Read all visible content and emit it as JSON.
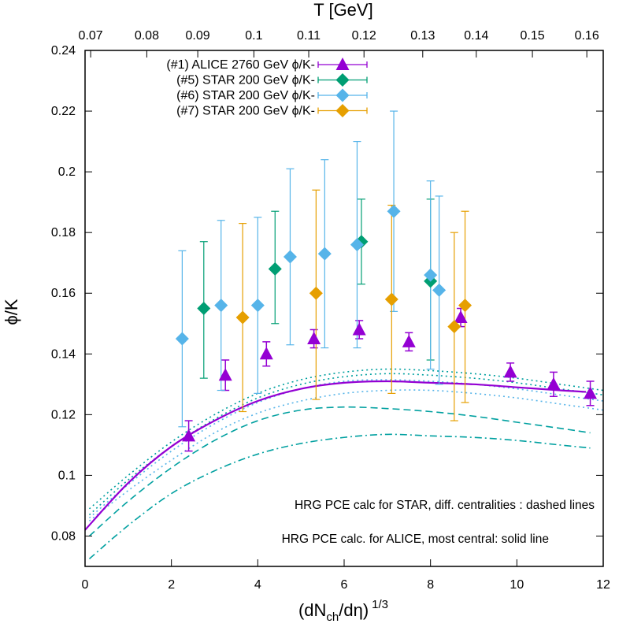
{
  "chart_data": {
    "type": "scatter",
    "title": "",
    "xlabel_main": "(dN",
    "xlabel_sub": "ch",
    "xlabel_tail": "/dη)",
    "xlabel_sup": "1/3",
    "ylabel": "ϕ/K",
    "x2label": "T [GeV]",
    "xlim": [
      0,
      12
    ],
    "ylim": [
      0.07,
      0.24
    ],
    "x_ticks": [
      {
        "value": 0,
        "label": "0"
      },
      {
        "value": 2,
        "label": "2"
      },
      {
        "value": 4,
        "label": "4"
      },
      {
        "value": 6,
        "label": "6"
      },
      {
        "value": 8,
        "label": "8"
      },
      {
        "value": 10,
        "label": "10"
      },
      {
        "value": 12,
        "label": "12"
      }
    ],
    "y_ticks": [
      {
        "value": 0.08,
        "label": "0.08"
      },
      {
        "value": 0.1,
        "label": "0.1"
      },
      {
        "value": 0.12,
        "label": "0.12"
      },
      {
        "value": 0.14,
        "label": "0.14"
      },
      {
        "value": 0.16,
        "label": "0.16"
      },
      {
        "value": 0.18,
        "label": "0.18"
      },
      {
        "value": 0.2,
        "label": "0.2"
      },
      {
        "value": 0.22,
        "label": "0.22"
      },
      {
        "value": 0.24,
        "label": "0.24"
      }
    ],
    "top_ticks": [
      {
        "x": 0.13,
        "label": "0.07"
      },
      {
        "x": 1.43,
        "label": "0.08"
      },
      {
        "x": 2.61,
        "label": "0.09"
      },
      {
        "x": 3.91,
        "label": "0.1"
      },
      {
        "x": 5.18,
        "label": "0.11"
      },
      {
        "x": 6.46,
        "label": "0.12"
      },
      {
        "x": 7.82,
        "label": "0.13"
      },
      {
        "x": 9.06,
        "label": "0.14"
      },
      {
        "x": 10.36,
        "label": "0.15"
      },
      {
        "x": 11.62,
        "label": "0.16"
      }
    ],
    "series": [
      {
        "name": "(#1) ALICE 2760 GeV ϕ/K-",
        "color": "#9400d3",
        "marker": "triangle",
        "points": [
          {
            "x": 2.4,
            "y": 0.113,
            "lo": 0.108,
            "hi": 0.118
          },
          {
            "x": 3.25,
            "y": 0.133,
            "lo": 0.128,
            "hi": 0.138
          },
          {
            "x": 4.2,
            "y": 0.14,
            "lo": 0.136,
            "hi": 0.144
          },
          {
            "x": 5.3,
            "y": 0.145,
            "lo": 0.142,
            "hi": 0.148
          },
          {
            "x": 6.35,
            "y": 0.148,
            "lo": 0.145,
            "hi": 0.151
          },
          {
            "x": 7.5,
            "y": 0.144,
            "lo": 0.141,
            "hi": 0.147
          },
          {
            "x": 8.7,
            "y": 0.152,
            "lo": 0.149,
            "hi": 0.155
          },
          {
            "x": 9.85,
            "y": 0.134,
            "lo": 0.131,
            "hi": 0.137
          },
          {
            "x": 10.85,
            "y": 0.13,
            "lo": 0.126,
            "hi": 0.134
          },
          {
            "x": 11.7,
            "y": 0.127,
            "lo": 0.123,
            "hi": 0.131
          }
        ]
      },
      {
        "name": "(#5) STAR 200 GeV ϕ/K-",
        "color": "#009e73",
        "marker": "diamond",
        "points": [
          {
            "x": 2.75,
            "y": 0.155,
            "lo": 0.132,
            "hi": 0.177
          },
          {
            "x": 4.4,
            "y": 0.168,
            "lo": 0.15,
            "hi": 0.187
          },
          {
            "x": 6.4,
            "y": 0.177,
            "lo": 0.163,
            "hi": 0.191
          },
          {
            "x": 8.0,
            "y": 0.164,
            "lo": 0.138,
            "hi": 0.191
          }
        ]
      },
      {
        "name": "(#6) STAR 200 GeV ϕ/K-",
        "color": "#56b4e9",
        "marker": "diamond",
        "points": [
          {
            "x": 2.25,
            "y": 0.145,
            "lo": 0.116,
            "hi": 0.174
          },
          {
            "x": 3.15,
            "y": 0.156,
            "lo": 0.128,
            "hi": 0.184
          },
          {
            "x": 4.0,
            "y": 0.156,
            "lo": 0.127,
            "hi": 0.185
          },
          {
            "x": 4.75,
            "y": 0.172,
            "lo": 0.143,
            "hi": 0.201
          },
          {
            "x": 5.55,
            "y": 0.173,
            "lo": 0.142,
            "hi": 0.204
          },
          {
            "x": 6.3,
            "y": 0.176,
            "lo": 0.142,
            "hi": 0.21
          },
          {
            "x": 7.15,
            "y": 0.187,
            "lo": 0.154,
            "hi": 0.22
          },
          {
            "x": 8.0,
            "y": 0.166,
            "lo": 0.135,
            "hi": 0.197
          },
          {
            "x": 8.2,
            "y": 0.161,
            "lo": 0.13,
            "hi": 0.192
          }
        ]
      },
      {
        "name": "(#7) STAR 200 GeV ϕ/K-",
        "color": "#e69f00",
        "marker": "diamond",
        "points": [
          {
            "x": 3.65,
            "y": 0.152,
            "lo": 0.121,
            "hi": 0.183
          },
          {
            "x": 5.35,
            "y": 0.16,
            "lo": 0.125,
            "hi": 0.194
          },
          {
            "x": 7.1,
            "y": 0.158,
            "lo": 0.127,
            "hi": 0.189
          },
          {
            "x": 8.55,
            "y": 0.149,
            "lo": 0.118,
            "hi": 0.18
          },
          {
            "x": 8.8,
            "y": 0.156,
            "lo": 0.124,
            "hi": 0.187
          }
        ]
      }
    ],
    "curves": [
      {
        "name": "STAR centrality 1",
        "color": "#00a0a0",
        "dash": "dot",
        "x": [
          0.1,
          1,
          2,
          3,
          4,
          5,
          6,
          7,
          8,
          9,
          10,
          11,
          12
        ],
        "y": [
          0.089,
          0.1,
          0.111,
          0.12,
          0.127,
          0.1315,
          0.134,
          0.135,
          0.1345,
          0.1335,
          0.132,
          0.13,
          0.128
        ]
      },
      {
        "name": "STAR centrality 2",
        "color": "#00a0a0",
        "dash": "dot",
        "x": [
          0.1,
          1,
          2,
          3,
          4,
          5,
          6,
          7,
          8,
          9,
          10,
          11,
          12
        ],
        "y": [
          0.087,
          0.0985,
          0.1095,
          0.1185,
          0.1255,
          0.13,
          0.1325,
          0.1335,
          0.133,
          0.132,
          0.1305,
          0.1285,
          0.1265
        ]
      },
      {
        "name": "STAR centrality 3",
        "color": "#56b4e9",
        "dash": "dot",
        "x": [
          0.1,
          1,
          2,
          3,
          4,
          5,
          6,
          7,
          8,
          9,
          10,
          11,
          12
        ],
        "y": [
          0.086,
          0.097,
          0.108,
          0.117,
          0.124,
          0.1285,
          0.131,
          0.1315,
          0.131,
          0.13,
          0.1285,
          0.1265,
          0.1245
        ]
      },
      {
        "name": "STAR centrality 4",
        "color": "#56b4e9",
        "dash": "dot",
        "x": [
          0.1,
          1,
          2,
          3,
          4,
          5,
          6,
          7,
          8,
          9,
          10,
          11,
          12
        ],
        "y": [
          0.085,
          0.095,
          0.105,
          0.114,
          0.1205,
          0.1245,
          0.127,
          0.128,
          0.128,
          0.127,
          0.1255,
          0.1235,
          0.1215
        ]
      },
      {
        "name": "STAR centrality 5",
        "color": "#00a0a0",
        "dash": "dash",
        "x": [
          0.1,
          1,
          2,
          3,
          4,
          5,
          6,
          7,
          8,
          9,
          10,
          11,
          11.7
        ],
        "y": [
          0.08,
          0.0915,
          0.1025,
          0.1115,
          0.118,
          0.1215,
          0.1225,
          0.122,
          0.121,
          0.1195,
          0.1175,
          0.1155,
          0.114
        ]
      },
      {
        "name": "STAR centrality 6",
        "color": "#00a0a0",
        "dash": "dashdot",
        "x": [
          0.1,
          1,
          2,
          3,
          4,
          5,
          6,
          7,
          8,
          9,
          10,
          11,
          11.7
        ],
        "y": [
          0.0725,
          0.0835,
          0.094,
          0.1015,
          0.107,
          0.1105,
          0.1125,
          0.1135,
          0.113,
          0.1125,
          0.1115,
          0.11,
          0.109
        ]
      },
      {
        "name": "ALICE most central",
        "color": "#9400d3",
        "dash": "solid",
        "x": [
          0,
          1,
          2,
          3,
          4,
          5,
          6,
          7,
          8,
          9,
          10,
          11,
          11.6
        ],
        "y": [
          0.082,
          0.0975,
          0.1095,
          0.118,
          0.1245,
          0.1285,
          0.1305,
          0.131,
          0.1305,
          0.13,
          0.129,
          0.128,
          0.1275
        ]
      }
    ],
    "annotations": [
      "HRG PCE calc for STAR, diff. centralities : dashed lines",
      "HRG PCE calc. for ALICE, most central: solid line"
    ],
    "legend_position": "top-left"
  }
}
